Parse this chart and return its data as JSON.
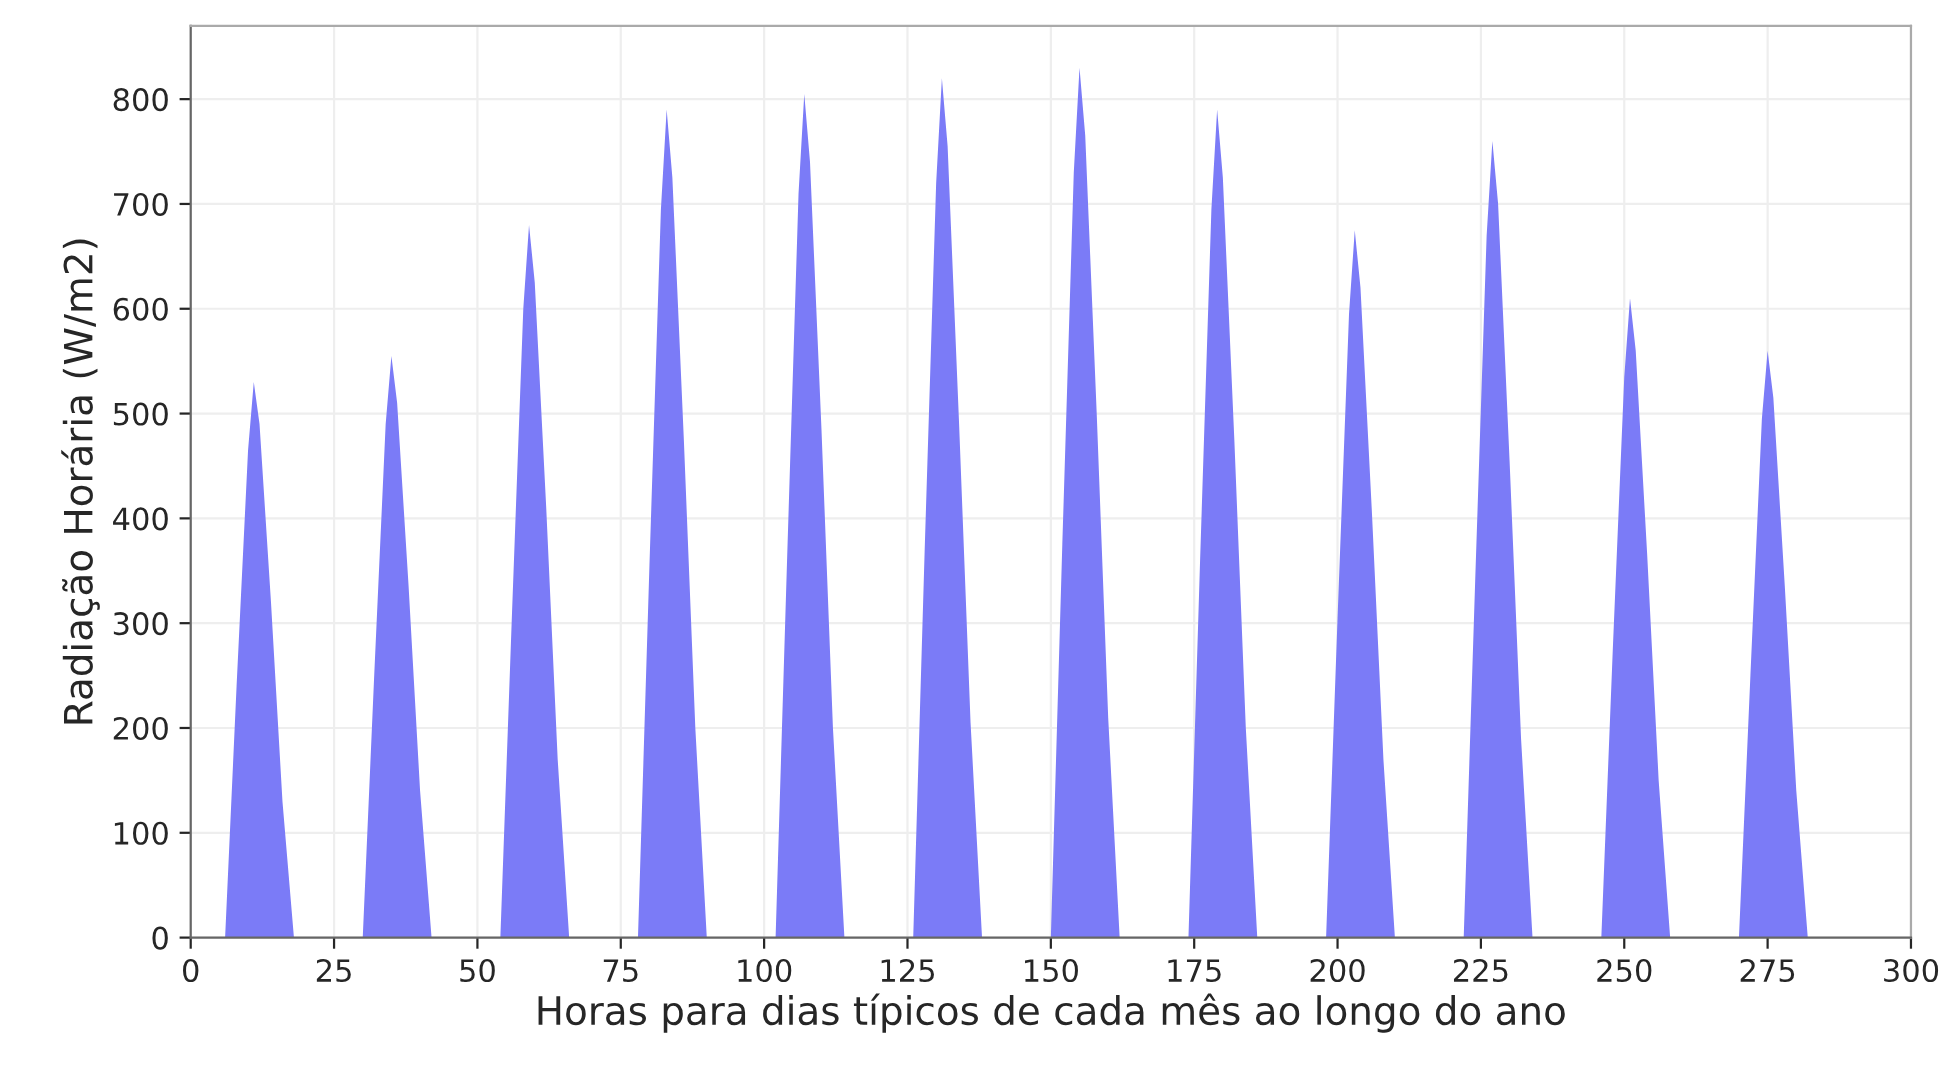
{
  "chart_data": {
    "type": "area",
    "xlabel": "Horas para dias típicos de cada mês ao longo do ano",
    "ylabel": "Radiação Horária (W/m2)",
    "x": [
      6,
      8,
      10,
      11,
      12,
      14,
      16,
      18,
      30,
      32,
      34,
      35,
      36,
      38,
      40,
      42,
      54,
      56,
      58,
      59,
      60,
      62,
      64,
      66,
      78,
      80,
      82,
      83,
      84,
      86,
      88,
      90,
      102,
      104,
      106,
      107,
      108,
      110,
      112,
      114,
      126,
      128,
      130,
      131,
      132,
      134,
      136,
      138,
      150,
      152,
      154,
      155,
      156,
      158,
      160,
      162,
      174,
      176,
      178,
      179,
      180,
      182,
      184,
      186,
      198,
      200,
      202,
      203,
      204,
      206,
      208,
      210,
      222,
      224,
      226,
      227,
      228,
      230,
      232,
      234,
      246,
      248,
      250,
      251,
      252,
      254,
      256,
      258,
      270,
      272,
      274,
      275,
      276,
      278,
      280,
      282
    ],
    "series": [
      {
        "color": "#7b7bf7",
        "values": [
          0,
          240,
          465,
          530,
          490,
          320,
          130,
          0,
          0,
          250,
          490,
          555,
          510,
          335,
          140,
          0,
          0,
          305,
          600,
          680,
          625,
          410,
          170,
          0,
          0,
          355,
          695,
          790,
          725,
          475,
          200,
          0,
          0,
          360,
          710,
          805,
          740,
          485,
          200,
          0,
          0,
          370,
          720,
          820,
          755,
          490,
          205,
          0,
          0,
          375,
          730,
          830,
          765,
          500,
          210,
          0,
          0,
          355,
          695,
          790,
          725,
          475,
          200,
          0,
          0,
          305,
          595,
          675,
          620,
          405,
          170,
          0,
          0,
          340,
          670,
          760,
          700,
          455,
          190,
          0,
          0,
          275,
          535,
          610,
          560,
          365,
          150,
          0,
          0,
          250,
          495,
          560,
          515,
          335,
          140,
          0
        ]
      }
    ],
    "xlim": [
      0,
      300
    ],
    "xticks": [
      0,
      25,
      50,
      75,
      100,
      125,
      150,
      175,
      200,
      225,
      250,
      275,
      300
    ],
    "ylim": [
      0,
      870
    ],
    "yticks": [
      0,
      100,
      200,
      300,
      400,
      500,
      600,
      700,
      800
    ],
    "grid": true
  }
}
